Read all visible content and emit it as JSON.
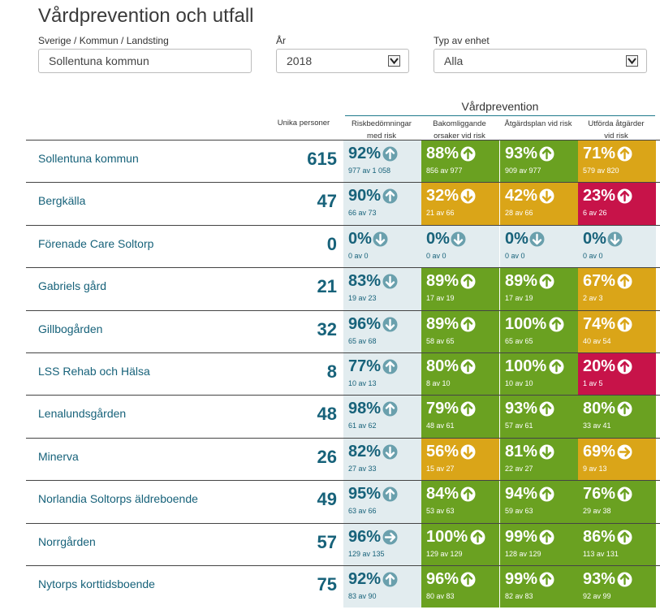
{
  "title": "Vårdprevention och utfall",
  "filters": {
    "region_label": "Sverige / Kommun / Landsting",
    "region_value": "Sollentuna kommun",
    "year_label": "År",
    "year_value": "2018",
    "unit_label": "Typ av enhet",
    "unit_value": "Alla"
  },
  "table": {
    "group_header": "Vårdprevention",
    "unique_header": "Unika personer",
    "col1": [
      "Riskbedömningar",
      "med risk"
    ],
    "col2": [
      "Bakomliggande",
      "orsaker vid risk"
    ],
    "col3": [
      "Åtgärdsplan vid risk"
    ],
    "col4": [
      "Utförda åtgärder",
      "vid risk"
    ],
    "colors": {
      "blue": "#e2ecef",
      "green": "#6aa121",
      "yellow": "#daa518",
      "red": "#c71349"
    },
    "rows": [
      {
        "name": "Sollentuna kommun",
        "count": "615",
        "cells": [
          {
            "pct": "92%",
            "frac": "977 av 1 058",
            "color": "blue",
            "arrow": "up"
          },
          {
            "pct": "88%",
            "frac": "856 av 977",
            "color": "green",
            "arrow": "up"
          },
          {
            "pct": "93%",
            "frac": "909 av 977",
            "color": "green",
            "arrow": "up"
          },
          {
            "pct": "71%",
            "frac": "579 av 820",
            "color": "yellow",
            "arrow": "up"
          }
        ]
      },
      {
        "name": "Bergkälla",
        "count": "47",
        "cells": [
          {
            "pct": "90%",
            "frac": "66 av 73",
            "color": "blue",
            "arrow": "up"
          },
          {
            "pct": "32%",
            "frac": "21 av 66",
            "color": "yellow",
            "arrow": "down"
          },
          {
            "pct": "42%",
            "frac": "28 av 66",
            "color": "yellow",
            "arrow": "down"
          },
          {
            "pct": "23%",
            "frac": "6 av 26",
            "color": "red",
            "arrow": "up"
          }
        ]
      },
      {
        "name": "Förenade Care Soltorp",
        "count": "0",
        "cells": [
          {
            "pct": "0%",
            "frac": "0 av 0",
            "color": "blue",
            "arrow": "down"
          },
          {
            "pct": "0%",
            "frac": "0 av 0",
            "color": "blue",
            "arrow": "down"
          },
          {
            "pct": "0%",
            "frac": "0 av 0",
            "color": "blue",
            "arrow": "down"
          },
          {
            "pct": "0%",
            "frac": "0 av 0",
            "color": "blue",
            "arrow": "down"
          }
        ]
      },
      {
        "name": "Gabriels gård",
        "count": "21",
        "cells": [
          {
            "pct": "83%",
            "frac": "19 av 23",
            "color": "blue",
            "arrow": "down"
          },
          {
            "pct": "89%",
            "frac": "17 av 19",
            "color": "green",
            "arrow": "up"
          },
          {
            "pct": "89%",
            "frac": "17 av 19",
            "color": "green",
            "arrow": "up"
          },
          {
            "pct": "67%",
            "frac": "2 av 3",
            "color": "yellow",
            "arrow": "up"
          }
        ]
      },
      {
        "name": "Gillbogården",
        "count": "32",
        "cells": [
          {
            "pct": "96%",
            "frac": "65 av 68",
            "color": "blue",
            "arrow": "down"
          },
          {
            "pct": "89%",
            "frac": "58 av 65",
            "color": "green",
            "arrow": "up"
          },
          {
            "pct": "100%",
            "frac": "65 av 65",
            "color": "green",
            "arrow": "up"
          },
          {
            "pct": "74%",
            "frac": "40 av 54",
            "color": "yellow",
            "arrow": "up"
          }
        ]
      },
      {
        "name": "LSS Rehab och Hälsa",
        "count": "8",
        "cells": [
          {
            "pct": "77%",
            "frac": "10 av 13",
            "color": "blue",
            "arrow": "up"
          },
          {
            "pct": "80%",
            "frac": "8 av 10",
            "color": "green",
            "arrow": "up"
          },
          {
            "pct": "100%",
            "frac": "10 av 10",
            "color": "green",
            "arrow": "up"
          },
          {
            "pct": "20%",
            "frac": "1 av 5",
            "color": "red",
            "arrow": "up"
          }
        ]
      },
      {
        "name": "Lenalundsgården",
        "count": "48",
        "cells": [
          {
            "pct": "98%",
            "frac": "61 av 62",
            "color": "blue",
            "arrow": "up"
          },
          {
            "pct": "79%",
            "frac": "48 av 61",
            "color": "green",
            "arrow": "up"
          },
          {
            "pct": "93%",
            "frac": "57 av 61",
            "color": "green",
            "arrow": "up"
          },
          {
            "pct": "80%",
            "frac": "33 av 41",
            "color": "green",
            "arrow": "up"
          }
        ]
      },
      {
        "name": "Minerva",
        "count": "26",
        "cells": [
          {
            "pct": "82%",
            "frac": "27 av 33",
            "color": "blue",
            "arrow": "down"
          },
          {
            "pct": "56%",
            "frac": "15 av 27",
            "color": "yellow",
            "arrow": "down"
          },
          {
            "pct": "81%",
            "frac": "22 av 27",
            "color": "green",
            "arrow": "down"
          },
          {
            "pct": "69%",
            "frac": "9 av 13",
            "color": "yellow",
            "arrow": "right"
          }
        ]
      },
      {
        "name": "Norlandia Soltorps äldreboende",
        "count": "49",
        "cells": [
          {
            "pct": "95%",
            "frac": "63 av 66",
            "color": "blue",
            "arrow": "up"
          },
          {
            "pct": "84%",
            "frac": "53 av 63",
            "color": "green",
            "arrow": "up"
          },
          {
            "pct": "94%",
            "frac": "59 av 63",
            "color": "green",
            "arrow": "up"
          },
          {
            "pct": "76%",
            "frac": "29 av 38",
            "color": "green",
            "arrow": "up"
          }
        ]
      },
      {
        "name": "Norrgården",
        "count": "57",
        "cells": [
          {
            "pct": "96%",
            "frac": "129 av 135",
            "color": "blue",
            "arrow": "right"
          },
          {
            "pct": "100%",
            "frac": "129 av 129",
            "color": "green",
            "arrow": "up"
          },
          {
            "pct": "99%",
            "frac": "128 av 129",
            "color": "green",
            "arrow": "up"
          },
          {
            "pct": "86%",
            "frac": "113 av 131",
            "color": "green",
            "arrow": "up"
          }
        ]
      },
      {
        "name": "Nytorps korttidsboende",
        "count": "75",
        "cells": [
          {
            "pct": "92%",
            "frac": "83 av 90",
            "color": "blue",
            "arrow": "up"
          },
          {
            "pct": "96%",
            "frac": "80 av 83",
            "color": "green",
            "arrow": "up"
          },
          {
            "pct": "99%",
            "frac": "82 av 83",
            "color": "green",
            "arrow": "up"
          },
          {
            "pct": "93%",
            "frac": "92 av 99",
            "color": "green",
            "arrow": "up"
          }
        ]
      }
    ]
  }
}
